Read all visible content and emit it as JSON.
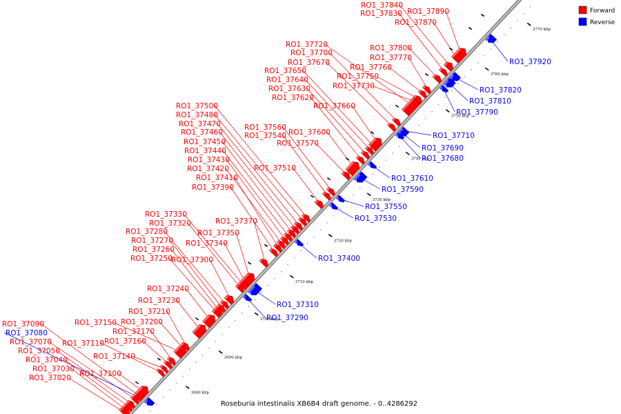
{
  "caption": "Roseburia intestinalis XB6B4 draft genome. - 0..4286292",
  "colors": {
    "forward": "#ff0000",
    "reverse": "#0000ff",
    "axis": "#999999"
  },
  "legend": [
    {
      "key": "forward",
      "label": "Forward"
    },
    {
      "key": "reverse",
      "label": "Reverse"
    }
  ],
  "axis_ticks": [
    "3680 kbp",
    "3690 kbp",
    "3700 kbp",
    "3710 kbp",
    "3720 kbp",
    "3730 kbp",
    "3740 kbp",
    "3750 kbp",
    "3760 kbp",
    "3770 kbp"
  ],
  "forward_genes": [
    "RO1_37020",
    "RO1_37030",
    "RO1_37040",
    "RO1_37050",
    "RO1_37070",
    "RO1_37090",
    "RO1_37100",
    "RO1_37110",
    "RO1_37140",
    "RO1_37150",
    "RO1_37160",
    "RO1_37170",
    "RO1_37200",
    "RO1_37210",
    "RO1_37230",
    "RO1_37240",
    "RO1_37250",
    "RO1_37260",
    "RO1_37270",
    "RO1_37280",
    "RO1_37300",
    "RO1_37320",
    "RO1_37330",
    "RO1_37340",
    "RO1_37350",
    "RO1_37370",
    "RO1_37390",
    "RO1_37410",
    "RO1_37420",
    "RO1_37430",
    "RO1_37440",
    "RO1_37450",
    "RO1_37460",
    "RO1_37470",
    "RO1_37480",
    "RO1_37500",
    "RO1_37510",
    "RO1_37540",
    "RO1_37560",
    "RO1_37570",
    "RO1_37600",
    "RO1_37620",
    "RO1_37630",
    "RO1_37640",
    "RO1_37650",
    "RO1_37660",
    "RO1_37670",
    "RO1_37700",
    "RO1_37720",
    "RO1_37730",
    "RO1_37750",
    "RO1_37760",
    "RO1_37770",
    "RO1_37800",
    "RO1_37830",
    "RO1_37840",
    "RO1_37870",
    "RO1_37890"
  ],
  "reverse_genes": [
    "RO1_37080",
    "RO1_37290",
    "RO1_37310",
    "RO1_37400",
    "RO1_37530",
    "RO1_37550",
    "RO1_37590",
    "RO1_37610",
    "RO1_37680",
    "RO1_37690",
    "RO1_37710",
    "RO1_37790",
    "RO1_37810",
    "RO1_37820",
    "RO1_37920"
  ]
}
